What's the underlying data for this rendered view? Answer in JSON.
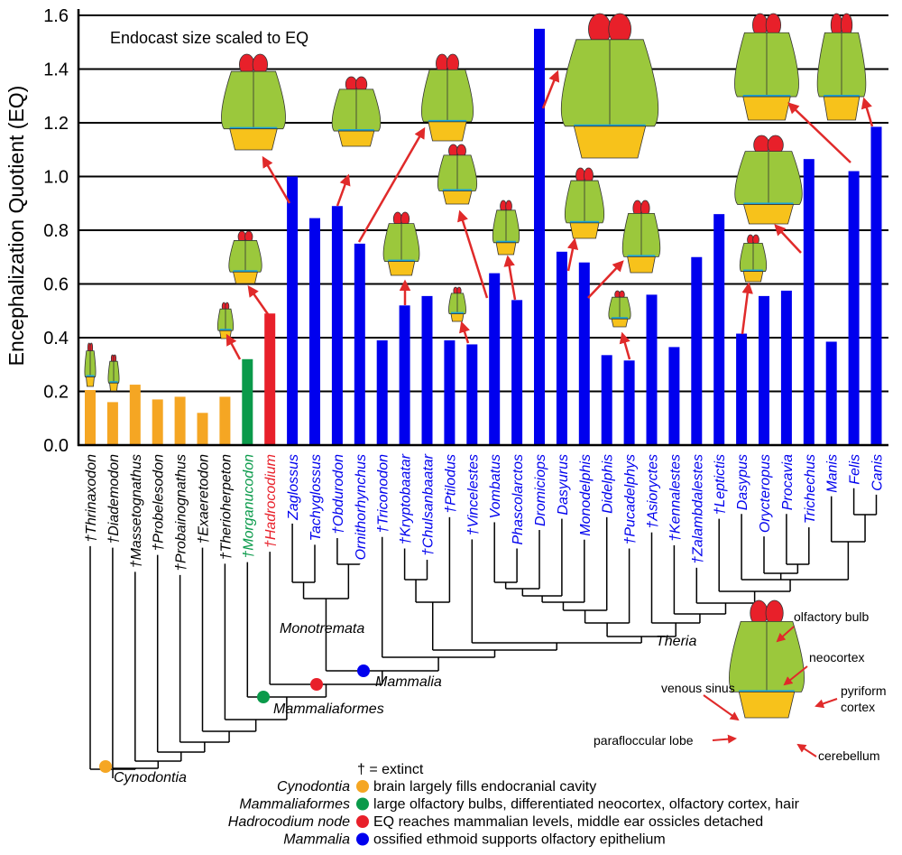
{
  "chart_data": {
    "type": "bar",
    "ylabel": "Encephalization  Quotient  (EQ)",
    "ylim": [
      0,
      1.6
    ],
    "yticks": [
      "0.0",
      "0.2",
      "0.4",
      "0.6",
      "0.8",
      "1.0",
      "1.2",
      "1.4",
      "1.6"
    ],
    "grid": true,
    "annotation": "Endocast size scaled to EQ",
    "categories": [
      "†Thrinaxodon",
      "†Diademodon",
      "†Massetognathus",
      "†Probelesodon",
      "†Probainognathus",
      "†Exaeretodon",
      "†Therioherpeton",
      "†Morganucodon",
      "†Hadrocodium",
      "Zaglossus",
      "Tachyglossus",
      "†Obdurodon",
      "Ornithorhynchus",
      "†Triconodon",
      "†Kryptobaatar",
      "†Chulsanbaatar",
      "†Ptilodus",
      "†Vincelestes",
      "Vombatus",
      "Phascolarctos",
      "Dromiciops",
      "Dasyurus",
      "Monodelphis",
      "Didelphis",
      "†Pucadelphys",
      "†Asioryctes",
      "†Kennalestes",
      "†Zalambdalestes",
      "†Leptictis",
      "Dasypus",
      "Orycteropus",
      "Procavia",
      "Trichechus",
      "Manis",
      "Felis",
      "Canis"
    ],
    "values": [
      0.205,
      0.16,
      0.225,
      0.17,
      0.18,
      0.12,
      0.18,
      0.32,
      0.49,
      1.0,
      0.845,
      0.89,
      0.75,
      0.39,
      0.52,
      0.555,
      0.39,
      0.375,
      0.64,
      0.54,
      1.55,
      0.72,
      0.68,
      0.335,
      0.315,
      0.56,
      0.365,
      0.7,
      0.86,
      0.415,
      0.555,
      0.575,
      1.065,
      0.385,
      1.02,
      1.185
    ],
    "groups": [
      "cynodont",
      "cynodont",
      "cynodont",
      "cynodont",
      "cynodont",
      "cynodont",
      "cynodont",
      "mammaliaform",
      "hadrocodium",
      "mammal",
      "mammal",
      "mammal",
      "mammal",
      "mammal",
      "mammal",
      "mammal",
      "mammal",
      "mammal",
      "mammal",
      "mammal",
      "mammal",
      "mammal",
      "mammal",
      "mammal",
      "mammal",
      "mammal",
      "mammal",
      "mammal",
      "mammal",
      "mammal",
      "mammal",
      "mammal",
      "mammal",
      "mammal",
      "mammal",
      "mammal"
    ],
    "colors": {
      "cynodont": "#f5a623",
      "mammaliaform": "#0a9a4a",
      "hadrocodium": "#e8202a",
      "mammal": "#0000ee"
    },
    "label_colors": {
      "cynodont": "#000000",
      "mammaliaform": "#0a9a4a",
      "hadrocodium": "#e8202a",
      "mammal": "#0000ee"
    }
  },
  "tree": {
    "clades": {
      "monotremata": "Monotremata",
      "theria": "Theria",
      "mammalia": "Mammalia",
      "mammaliaformes": "Mammaliaformes",
      "cynodontia": "Cynodontia"
    }
  },
  "inset": {
    "olfactory_bulb": "olfactory bulb",
    "neocortex": "neocortex",
    "pyriform": "pyriform",
    "cortex": "cortex",
    "venous_sinus": "venous sinus",
    "parafloccular": "parafloccular lobe",
    "cerebellum": "cerebellum"
  },
  "legend": {
    "extinct": "† = extinct",
    "items": [
      {
        "name": "Cynodontia",
        "text": "brain largely fills endocranial cavity",
        "color": "#f5a623"
      },
      {
        "name": "Mammaliaformes",
        "text": "large olfactory bulbs, differentiated neocortex, olfactory cortex, hair",
        "color": "#0a9a4a"
      },
      {
        "name": "Hadrocodium node",
        "text": "EQ reaches mammalian levels, middle ear ossicles detached",
        "color": "#e8202a"
      },
      {
        "name": "Mammalia",
        "text": "ossified ethmoid supports olfactory epithelium",
        "color": "#0000ee"
      }
    ]
  }
}
